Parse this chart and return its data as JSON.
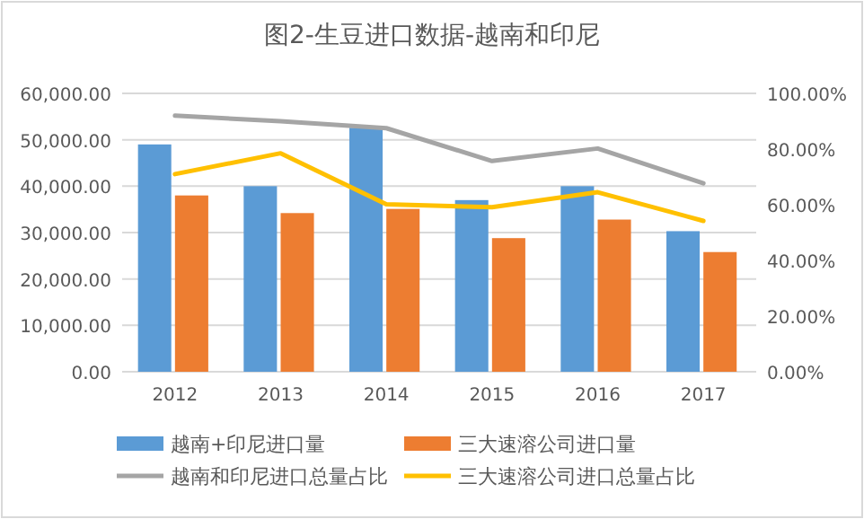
{
  "chart_data": {
    "type": "bar",
    "title": "图2-生豆进口数据-越南和印尼",
    "categories": [
      "2012",
      "2013",
      "2014",
      "2015",
      "2016",
      "2017"
    ],
    "series": [
      {
        "name": "越南+印尼进口量",
        "color": "#5b9bd5",
        "values": [
          49000,
          40000,
          52600,
          37000,
          40000,
          30300
        ]
      },
      {
        "name": "三大速溶公司进口量",
        "color": "#ed7d31",
        "values": [
          38000,
          34200,
          35100,
          28800,
          32800,
          25800
        ]
      },
      {
        "name": "越南和印尼进口总量占比",
        "color": "#a5a5a5",
        "type": "line",
        "axis": "y2",
        "values": [
          92,
          90,
          87.5,
          75.7,
          80.2,
          67.7
        ]
      },
      {
        "name": "三大速溶公司进口总量占比",
        "color": "#ffc000",
        "type": "line",
        "axis": "y2",
        "values": [
          71,
          78.5,
          60.2,
          59.1,
          64.5,
          54.2
        ]
      }
    ],
    "ylim": [
      0,
      60000
    ],
    "yticks": [
      {
        "value": 0,
        "label": "0.00"
      },
      {
        "value": 10000,
        "label": "10,000.00"
      },
      {
        "value": 20000,
        "label": "20,000.00"
      },
      {
        "value": 30000,
        "label": "30,000.00"
      },
      {
        "value": 40000,
        "label": "40,000.00"
      },
      {
        "value": 50000,
        "label": "50,000.00"
      },
      {
        "value": 60000,
        "label": "60,000.00"
      }
    ],
    "y2lim": [
      0,
      100
    ],
    "y2ticks": [
      {
        "value": 0,
        "label": "0.00%"
      },
      {
        "value": 20,
        "label": "20.00%"
      },
      {
        "value": 40,
        "label": "40.00%"
      },
      {
        "value": 60,
        "label": "60.00%"
      },
      {
        "value": 80,
        "label": "80.00%"
      },
      {
        "value": 100,
        "label": "100.00%"
      }
    ],
    "grid": "y",
    "legend": "bottom",
    "line_style": "solid",
    "marker": "none"
  }
}
